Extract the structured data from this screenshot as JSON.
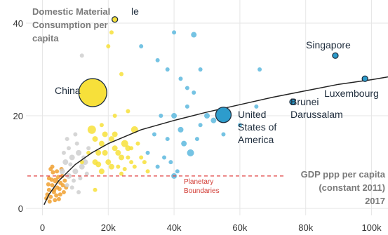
{
  "chart_data": {
    "type": "scatter",
    "title": "",
    "ylabel_lines": [
      "Domestic Material",
      "Consumption per",
      "capita"
    ],
    "xlabel_lines": [
      "GDP ppp per capita",
      "(constant 2011)",
      "2017"
    ],
    "xlim": [
      -5000,
      105000
    ],
    "ylim": [
      -1.5,
      45
    ],
    "xticks": [
      0,
      20000,
      40000,
      60000,
      80000,
      100000
    ],
    "xtick_labels": [
      "0",
      "20k",
      "40k",
      "60k",
      "80k",
      "100k"
    ],
    "yticks": [
      0,
      20,
      40
    ],
    "ytick_labels": [
      "0",
      "20",
      "40"
    ],
    "grid": true,
    "colors": {
      "orange": "#f0a030",
      "gray": "#cfcfcf",
      "yellow": "#f7e03a",
      "blue": "#5db8de",
      "highlight_blue": "#2d9ccc",
      "trend": "#222222",
      "boundary": "#e04040"
    },
    "planetary_boundary": {
      "y": 7.0,
      "label_lines": [
        "Planetary",
        "Boundaries"
      ]
    },
    "trend_curve": [
      [
        500,
        0.8
      ],
      [
        2000,
        3.0
      ],
      [
        5000,
        6.0
      ],
      [
        10000,
        9.5
      ],
      [
        15000,
        12.0
      ],
      [
        20000,
        14.0
      ],
      [
        30000,
        17.0
      ],
      [
        40000,
        19.0
      ],
      [
        50000,
        20.8
      ],
      [
        60000,
        22.4
      ],
      [
        70000,
        24.0
      ],
      [
        80000,
        25.4
      ],
      [
        90000,
        26.8
      ],
      [
        100000,
        27.8
      ],
      [
        105000,
        28.4
      ]
    ],
    "series": [
      {
        "color_key": "orange",
        "points": [
          [
            1500,
            3
          ],
          [
            2000,
            4
          ],
          [
            2500,
            2.5
          ],
          [
            3000,
            5
          ],
          [
            3500,
            3.5
          ],
          [
            4000,
            6
          ],
          [
            4500,
            4.5
          ],
          [
            5000,
            2
          ],
          [
            5500,
            5.5
          ],
          [
            6000,
            7
          ],
          [
            6500,
            3.5
          ],
          [
            2200,
            1.5
          ],
          [
            3200,
            7.8
          ],
          [
            4200,
            2.8
          ],
          [
            5200,
            4.2
          ],
          [
            1800,
            5.2
          ],
          [
            2800,
            6.2
          ],
          [
            3800,
            1.8
          ],
          [
            4800,
            6.8
          ],
          [
            6200,
            5.0
          ],
          [
            2500,
            8.5
          ],
          [
            1200,
            2.2
          ],
          [
            3600,
            4.0
          ],
          [
            5400,
            3.0
          ],
          [
            4400,
            8.0
          ],
          [
            6800,
            6.0
          ],
          [
            7200,
            4.5
          ],
          [
            3000,
            9.0
          ],
          [
            5800,
            8.5
          ],
          [
            2000,
            6.5
          ]
        ],
        "sizes": [
          3,
          3,
          3,
          3,
          3,
          4,
          3,
          3,
          3,
          3,
          3,
          3,
          3,
          3,
          3,
          3,
          3,
          3,
          3,
          3,
          3,
          3,
          3,
          3,
          3,
          3,
          3,
          3,
          3,
          3
        ]
      },
      {
        "color_key": "gray",
        "points": [
          [
            6000,
            8
          ],
          [
            7000,
            10
          ],
          [
            8000,
            7
          ],
          [
            9000,
            11
          ],
          [
            10000,
            8
          ],
          [
            11000,
            12
          ],
          [
            12000,
            9
          ],
          [
            13000,
            10
          ],
          [
            14000,
            13
          ],
          [
            9500,
            6
          ],
          [
            7500,
            5
          ],
          [
            10500,
            14
          ],
          [
            11500,
            6.5
          ],
          [
            8500,
            9.5
          ],
          [
            12500,
            11
          ],
          [
            6500,
            12
          ],
          [
            13500,
            7.5
          ],
          [
            8000,
            13
          ],
          [
            9000,
            4.5
          ],
          [
            11000,
            3.5
          ],
          [
            12000,
            33
          ],
          [
            7500,
            15
          ],
          [
            10000,
            16
          ]
        ],
        "sizes": [
          4,
          4,
          4,
          4,
          4,
          4,
          4,
          4,
          3,
          3,
          3,
          3,
          3,
          3,
          3,
          3,
          3,
          3,
          3,
          3,
          3,
          3,
          3
        ]
      },
      {
        "color_key": "yellow",
        "points": [
          [
            16000,
            10
          ],
          [
            17000,
            9.5
          ],
          [
            18000,
            8
          ],
          [
            19000,
            12
          ],
          [
            20000,
            10
          ],
          [
            21000,
            9
          ],
          [
            22000,
            13
          ],
          [
            23000,
            12
          ],
          [
            24000,
            11
          ],
          [
            25000,
            14
          ],
          [
            26000,
            13
          ],
          [
            27000,
            10
          ],
          [
            28000,
            17
          ],
          [
            15000,
            17
          ],
          [
            16000,
            15
          ],
          [
            17000,
            12
          ],
          [
            18000,
            14
          ],
          [
            19000,
            16
          ],
          [
            21000,
            15
          ],
          [
            22000,
            16
          ],
          [
            23000,
            9
          ],
          [
            24000,
            7.5
          ],
          [
            25000,
            8.5
          ],
          [
            26000,
            11
          ],
          [
            27000,
            13
          ],
          [
            28000,
            9
          ],
          [
            29000,
            14
          ],
          [
            30000,
            11
          ],
          [
            31000,
            10
          ],
          [
            32000,
            8
          ],
          [
            20000,
            35
          ],
          [
            21000,
            38
          ],
          [
            22000,
            20
          ],
          [
            24000,
            29
          ],
          [
            16000,
            4
          ],
          [
            18000,
            18
          ],
          [
            26000,
            21
          ],
          [
            14000,
            12
          ],
          [
            12000,
            10
          ]
        ],
        "sizes": [
          4,
          4,
          4,
          4,
          4,
          4,
          4,
          4,
          4,
          5,
          4,
          3,
          5,
          6,
          4,
          4,
          4,
          4,
          4,
          4,
          3,
          3,
          3,
          3,
          3,
          3,
          3,
          3,
          3,
          3,
          3,
          3,
          3,
          3,
          3,
          3,
          3,
          3,
          3
        ]
      },
      {
        "color_key": "blue",
        "points": [
          [
            30000,
            35
          ],
          [
            35000,
            32
          ],
          [
            38000,
            30
          ],
          [
            40000,
            38
          ],
          [
            42000,
            28
          ],
          [
            44000,
            26
          ],
          [
            46000,
            37.5
          ],
          [
            48000,
            30
          ],
          [
            40000,
            20
          ],
          [
            36000,
            20
          ],
          [
            34000,
            16
          ],
          [
            38000,
            15
          ],
          [
            42000,
            17
          ],
          [
            44000,
            22
          ],
          [
            46000,
            25
          ],
          [
            48000,
            18
          ],
          [
            50000,
            20
          ],
          [
            52000,
            19
          ],
          [
            43000,
            14
          ],
          [
            39000,
            10
          ],
          [
            37000,
            11
          ],
          [
            35000,
            9
          ],
          [
            41000,
            8
          ],
          [
            45000,
            12
          ],
          [
            47000,
            15
          ],
          [
            55000,
            16
          ],
          [
            60000,
            18
          ],
          [
            65000,
            22
          ],
          [
            66000,
            30
          ],
          [
            40000,
            7
          ],
          [
            32000,
            12
          ]
        ],
        "sizes": [
          3,
          3,
          3,
          3,
          3,
          3,
          4,
          3,
          4,
          3,
          3,
          3,
          4,
          3,
          3,
          3,
          4,
          4,
          4,
          3,
          3,
          3,
          3,
          5,
          3,
          3,
          3,
          3,
          3,
          4,
          3
        ]
      }
    ],
    "highlighted": [
      {
        "name": "China",
        "x": 15300,
        "y": 25.0,
        "r": 20,
        "color_key": "yellow"
      },
      {
        "name": "United States of America",
        "x": 55000,
        "y": 20.2,
        "r": 11,
        "color_key": "highlight_blue"
      },
      {
        "name": "Singapore",
        "x": 89000,
        "y": 33.0,
        "r": 4,
        "color_key": "highlight_blue"
      },
      {
        "name": "Luxembourg",
        "x": 98000,
        "y": 28.0,
        "r": 4,
        "color_key": "highlight_blue"
      },
      {
        "name": "Brunei Darussalam",
        "x": 76000,
        "y": 23.0,
        "r": 4,
        "color_key": "highlight_blue"
      },
      {
        "name": "Chile",
        "x": 22000,
        "y": 40.8,
        "r": 4,
        "color_key": "yellow"
      }
    ],
    "labels": {
      "china": "China",
      "usa_lines": [
        "United",
        "States of",
        "America"
      ],
      "singapore": "Singapore",
      "luxembourg": "Luxembourg",
      "brunei_lines": [
        "Brunei",
        "Darussalam"
      ],
      "chile_partial": "le"
    }
  }
}
